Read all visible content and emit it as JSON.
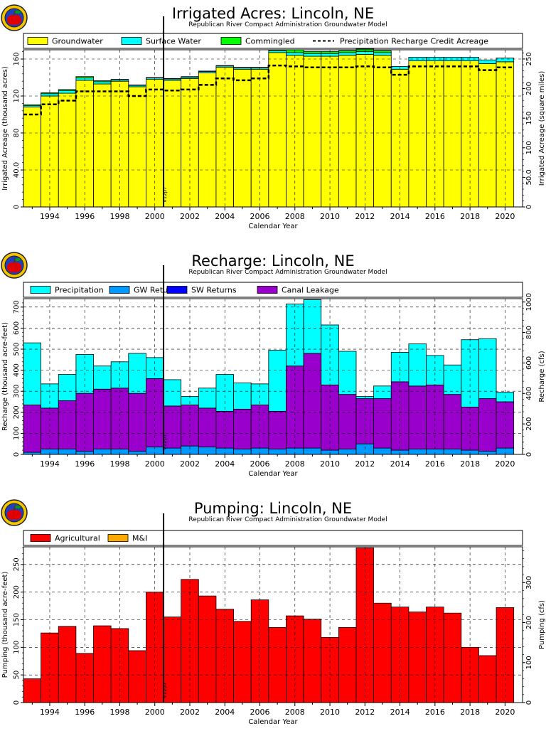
{
  "chart_data": [
    {
      "type": "bar",
      "title": "Irrigated Acres: Lincoln, NE",
      "subtitle": "Republican River Compact Administration Groundwater Model",
      "xlabel": "Calendar Year",
      "ylabel": "Irrigated Acreage (thousand acres)",
      "y2label": "Irrigated Acreage (square miles)",
      "marker_label": "V12p7",
      "marker_year": 2000.5,
      "xlim": [
        1992.5,
        2021
      ],
      "ylim": [
        0,
        170
      ],
      "y2lim": [
        0,
        265.6
      ],
      "grid": true,
      "legend_position": "top",
      "years": [
        1993,
        1994,
        1995,
        1996,
        1997,
        1998,
        1999,
        2000,
        2001,
        2002,
        2003,
        2004,
        2005,
        2006,
        2007,
        2008,
        2009,
        2010,
        2011,
        2012,
        2013,
        2014,
        2015,
        2016,
        2017,
        2018,
        2019,
        2020
      ],
      "yticks": [
        {
          "v": 0,
          "label": "0"
        },
        {
          "v": 40,
          "label": "40.0"
        },
        {
          "v": 80,
          "label": "80"
        },
        {
          "v": 120,
          "label": "120"
        },
        {
          "v": 160,
          "label": "160"
        }
      ],
      "y2ticks": [
        {
          "v": 0,
          "label": "0"
        },
        {
          "v": 50,
          "label": "50.0"
        },
        {
          "v": 100,
          "label": "100"
        },
        {
          "v": 150,
          "label": "150"
        },
        {
          "v": 200,
          "label": "200"
        },
        {
          "v": 250,
          "label": "250"
        }
      ],
      "series": [
        {
          "name": "Groundwater",
          "color": "#ffff00",
          "values": [
            108,
            120,
            123,
            137,
            133,
            136,
            130,
            138,
            137,
            139,
            145,
            151,
            149,
            149,
            167,
            164,
            163,
            163,
            164,
            165,
            164,
            149,
            158,
            158,
            158,
            158,
            155,
            157
          ]
        },
        {
          "name": "Surface Water",
          "color": "#00ffff",
          "values": [
            1.5,
            2.5,
            3,
            2.5,
            2.5,
            1.5,
            1.5,
            1.5,
            1.5,
            1.5,
            1.5,
            1.5,
            1.5,
            1.5,
            2,
            3,
            3,
            3,
            3,
            3,
            3,
            3,
            4,
            4,
            4,
            4,
            4,
            4
          ]
        },
        {
          "name": "Commingled",
          "color": "#00ff00",
          "values": [
            1,
            1,
            1,
            1.5,
            1,
            0.5,
            0.5,
            0.5,
            0.5,
            0.5,
            0.5,
            0.5,
            0.5,
            0.5,
            1,
            3,
            2,
            2,
            2,
            3,
            2,
            0,
            0,
            0,
            0,
            0,
            0,
            0
          ]
        }
      ],
      "line_series": {
        "name": "Precipitation Recharge Credit Acreage",
        "values": [
          100,
          111,
          115,
          125,
          125,
          125,
          120,
          127,
          126,
          127,
          132,
          139,
          137,
          139,
          153,
          152,
          151,
          151,
          151,
          152,
          151,
          143,
          152,
          152,
          152,
          152,
          148,
          151
        ]
      }
    },
    {
      "type": "bar",
      "title": "Recharge: Lincoln, NE",
      "subtitle": "Republican River Compact Administration Groundwater Model",
      "xlabel": "Calendar Year",
      "ylabel": "Recharge (thousand acre-feet)",
      "y2label": "Recharge (cfs)",
      "marker_label": "V12p7",
      "marker_year": 2000.5,
      "xlim": [
        1992.5,
        2021
      ],
      "ylim": [
        0,
        740
      ],
      "y2lim": [
        0,
        1022
      ],
      "grid": true,
      "legend_position": "top",
      "years": [
        1993,
        1994,
        1995,
        1996,
        1997,
        1998,
        1999,
        2000,
        2001,
        2002,
        2003,
        2004,
        2005,
        2006,
        2007,
        2008,
        2009,
        2010,
        2011,
        2012,
        2013,
        2014,
        2015,
        2016,
        2017,
        2018,
        2019,
        2020
      ],
      "yticks": [
        {
          "v": 0,
          "label": "0"
        },
        {
          "v": 100,
          "label": "100"
        },
        {
          "v": 200,
          "label": "200"
        },
        {
          "v": 300,
          "label": "300"
        },
        {
          "v": 400,
          "label": "400"
        },
        {
          "v": 500,
          "label": "500"
        },
        {
          "v": 600,
          "label": "600"
        },
        {
          "v": 700,
          "label": "700"
        }
      ],
      "y2ticks": [
        {
          "v": 0,
          "label": "0"
        },
        {
          "v": 200,
          "label": "200"
        },
        {
          "v": 400,
          "label": "400"
        },
        {
          "v": 600,
          "label": "600"
        },
        {
          "v": 800,
          "label": "800"
        },
        {
          "v": 1000,
          "label": "1000"
        }
      ],
      "series": [
        {
          "name": "GW Returns",
          "color": "#0099ff",
          "values": [
            10,
            25,
            25,
            15,
            25,
            25,
            15,
            35,
            30,
            40,
            35,
            30,
            25,
            30,
            25,
            30,
            30,
            20,
            25,
            50,
            30,
            20,
            25,
            25,
            25,
            20,
            15,
            30
          ]
        },
        {
          "name": "SW Returns",
          "color": "#0000ff",
          "values": [
            0,
            0,
            0,
            0,
            0,
            0,
            0,
            0,
            0,
            0,
            0,
            0,
            0,
            0,
            0,
            0,
            0,
            0,
            0,
            0,
            0,
            0,
            0,
            0,
            0,
            0,
            0,
            0
          ]
        },
        {
          "name": "Canal Leakage",
          "color": "#9900cc",
          "values": [
            225,
            195,
            230,
            275,
            285,
            290,
            275,
            325,
            200,
            195,
            185,
            175,
            190,
            205,
            180,
            390,
            450,
            310,
            260,
            215,
            235,
            325,
            300,
            305,
            260,
            205,
            250,
            220
          ]
        },
        {
          "name": "Precipitation",
          "color": "#00ffff",
          "values": [
            295,
            115,
            125,
            185,
            110,
            125,
            190,
            100,
            125,
            40,
            95,
            175,
            125,
            100,
            290,
            295,
            255,
            285,
            205,
            10,
            60,
            140,
            200,
            140,
            140,
            320,
            285,
            45
          ]
        }
      ]
    },
    {
      "type": "bar",
      "title": "Pumping: Lincoln, NE",
      "subtitle": "Republican River Compact Administration Groundwater Model",
      "xlabel": "Calendar Year",
      "ylabel": "Pumping (thousand acre-feet)",
      "y2label": "Pumping (cfs)",
      "marker_label": "V12p7",
      "marker_year": 2000.5,
      "xlim": [
        1992.5,
        2021
      ],
      "ylim": [
        0,
        282
      ],
      "y2lim": [
        0,
        389.5
      ],
      "grid": true,
      "legend_position": "top",
      "years": [
        1993,
        1994,
        1995,
        1996,
        1997,
        1998,
        1999,
        2000,
        2001,
        2002,
        2003,
        2004,
        2005,
        2006,
        2007,
        2008,
        2009,
        2010,
        2011,
        2012,
        2013,
        2014,
        2015,
        2016,
        2017,
        2018,
        2019,
        2020
      ],
      "yticks": [
        {
          "v": 0,
          "label": "0"
        },
        {
          "v": 50,
          "label": "50"
        },
        {
          "v": 100,
          "label": "100"
        },
        {
          "v": 150,
          "label": "150"
        },
        {
          "v": 200,
          "label": "200"
        },
        {
          "v": 250,
          "label": "250"
        }
      ],
      "y2ticks": [
        {
          "v": 0,
          "label": "0"
        },
        {
          "v": 100,
          "label": "100"
        },
        {
          "v": 200,
          "label": "200"
        },
        {
          "v": 300,
          "label": "300"
        }
      ],
      "series": [
        {
          "name": "Agricultural",
          "color": "#ff0000",
          "values": [
            43,
            126,
            138,
            89,
            139,
            134,
            94,
            200,
            155,
            223,
            193,
            169,
            147,
            186,
            136,
            157,
            151,
            118,
            136,
            280,
            180,
            173,
            164,
            173,
            162,
            100,
            85,
            172
          ]
        },
        {
          "name": "M&I",
          "color": "#ffaa00",
          "values": [
            0,
            0,
            0,
            0,
            0,
            0,
            0,
            0,
            0,
            0,
            0,
            0,
            0,
            0,
            0,
            0,
            0,
            0,
            0,
            0,
            0,
            0,
            0,
            0,
            0,
            0,
            0,
            0
          ]
        }
      ]
    }
  ],
  "icon": "apple-logo-icon"
}
